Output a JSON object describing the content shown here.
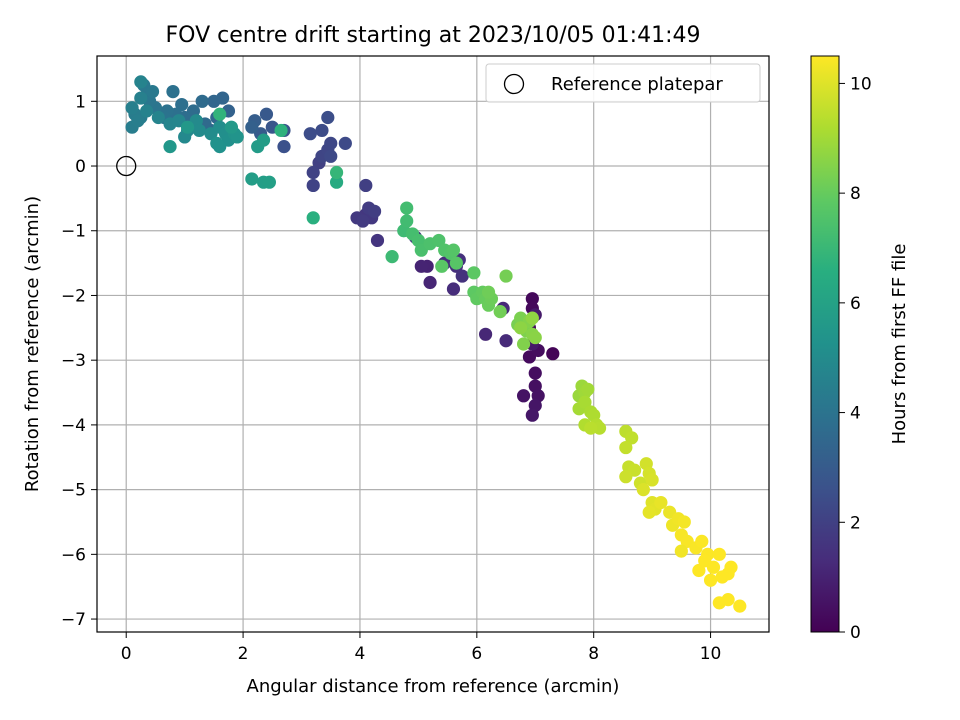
{
  "chart_data": {
    "type": "scatter",
    "title": "FOV centre drift starting at 2023/10/05 01:41:49",
    "xlabel": "Angular distance from reference (arcmin)",
    "ylabel": "Rotation from reference (arcmin)",
    "xlim": [
      -0.5,
      11.0
    ],
    "ylim": [
      -7.2,
      1.7
    ],
    "x_ticks": [
      0,
      2,
      4,
      6,
      8,
      10
    ],
    "y_ticks": [
      -7,
      -6,
      -5,
      -4,
      -3,
      -2,
      -1,
      0,
      1
    ],
    "grid": true,
    "legend": {
      "placement": "upper right",
      "entries": [
        "Reference platepar"
      ]
    },
    "reference_point": {
      "label": "Reference platepar",
      "x": 0,
      "y": 0
    },
    "colorbar": {
      "label": "Hours from first FF file",
      "colormap": "viridis",
      "range": [
        0,
        10.5
      ],
      "ticks": [
        0,
        2,
        4,
        6,
        8,
        10
      ]
    },
    "points": [
      {
        "x": 7.3,
        "y": -2.9,
        "c": 0.1
      },
      {
        "x": 6.95,
        "y": -2.05,
        "c": 0.2
      },
      {
        "x": 6.95,
        "y": -2.2,
        "c": 0.25
      },
      {
        "x": 6.9,
        "y": -2.95,
        "c": 0.3
      },
      {
        "x": 7.05,
        "y": -2.85,
        "c": 0.35
      },
      {
        "x": 7.0,
        "y": -3.2,
        "c": 0.4
      },
      {
        "x": 7.0,
        "y": -3.4,
        "c": 0.45
      },
      {
        "x": 7.05,
        "y": -3.55,
        "c": 0.5
      },
      {
        "x": 6.8,
        "y": -3.55,
        "c": 0.55
      },
      {
        "x": 7.0,
        "y": -3.7,
        "c": 0.6
      },
      {
        "x": 6.95,
        "y": -3.85,
        "c": 0.65
      },
      {
        "x": 6.95,
        "y": -2.75,
        "c": 0.7
      },
      {
        "x": 7.0,
        "y": -2.3,
        "c": 0.75
      },
      {
        "x": 6.9,
        "y": -2.5,
        "c": 0.3
      },
      {
        "x": 5.15,
        "y": -1.55,
        "c": 1.0
      },
      {
        "x": 5.05,
        "y": -1.55,
        "c": 1.05
      },
      {
        "x": 5.2,
        "y": -1.8,
        "c": 1.1
      },
      {
        "x": 6.15,
        "y": -2.6,
        "c": 1.15
      },
      {
        "x": 6.45,
        "y": -2.2,
        "c": 1.2
      },
      {
        "x": 6.5,
        "y": -2.7,
        "c": 1.25
      },
      {
        "x": 5.6,
        "y": -1.9,
        "c": 1.3
      },
      {
        "x": 5.45,
        "y": -1.5,
        "c": 1.35
      },
      {
        "x": 5.65,
        "y": -1.55,
        "c": 1.4
      },
      {
        "x": 5.7,
        "y": -1.45,
        "c": 1.45
      },
      {
        "x": 5.75,
        "y": -1.7,
        "c": 1.5
      },
      {
        "x": 4.95,
        "y": -1.1,
        "c": 1.55
      },
      {
        "x": 4.3,
        "y": -1.15,
        "c": 1.6
      },
      {
        "x": 4.1,
        "y": -0.75,
        "c": 1.65
      },
      {
        "x": 4.2,
        "y": -0.8,
        "c": 1.7
      },
      {
        "x": 3.95,
        "y": -0.8,
        "c": 1.75
      },
      {
        "x": 4.05,
        "y": -0.85,
        "c": 1.8
      },
      {
        "x": 4.15,
        "y": -0.65,
        "c": 1.85
      },
      {
        "x": 4.25,
        "y": -0.7,
        "c": 1.9
      },
      {
        "x": 4.1,
        "y": -0.3,
        "c": 1.95
      },
      {
        "x": 3.3,
        "y": 0.05,
        "c": 2.0
      },
      {
        "x": 3.2,
        "y": -0.1,
        "c": 2.05
      },
      {
        "x": 3.2,
        "y": -0.3,
        "c": 2.1
      },
      {
        "x": 3.35,
        "y": 0.15,
        "c": 2.15
      },
      {
        "x": 3.45,
        "y": 0.25,
        "c": 2.2
      },
      {
        "x": 3.5,
        "y": 0.35,
        "c": 2.25
      },
      {
        "x": 3.5,
        "y": 0.15,
        "c": 2.3
      },
      {
        "x": 3.75,
        "y": 0.35,
        "c": 2.35
      },
      {
        "x": 3.35,
        "y": 0.55,
        "c": 2.4
      },
      {
        "x": 3.15,
        "y": 0.5,
        "c": 2.45
      },
      {
        "x": 3.45,
        "y": 0.75,
        "c": 2.5
      },
      {
        "x": 2.7,
        "y": 0.3,
        "c": 2.6
      },
      {
        "x": 2.7,
        "y": 0.55,
        "c": 2.7
      },
      {
        "x": 2.5,
        "y": 0.6,
        "c": 2.8
      },
      {
        "x": 2.4,
        "y": 0.8,
        "c": 2.9
      },
      {
        "x": 2.3,
        "y": 0.5,
        "c": 3.0
      },
      {
        "x": 2.2,
        "y": 0.7,
        "c": 3.1
      },
      {
        "x": 2.15,
        "y": 0.6,
        "c": 3.2
      },
      {
        "x": 1.75,
        "y": 0.85,
        "c": 3.3
      },
      {
        "x": 1.65,
        "y": 1.05,
        "c": 3.4
      },
      {
        "x": 1.5,
        "y": 1.0,
        "c": 3.45
      },
      {
        "x": 1.55,
        "y": 0.75,
        "c": 3.5
      },
      {
        "x": 1.45,
        "y": 0.55,
        "c": 3.55
      },
      {
        "x": 1.35,
        "y": 0.65,
        "c": 3.6
      },
      {
        "x": 1.3,
        "y": 1.0,
        "c": 3.65
      },
      {
        "x": 1.15,
        "y": 0.85,
        "c": 3.7
      },
      {
        "x": 1.0,
        "y": 0.75,
        "c": 3.75
      },
      {
        "x": 0.95,
        "y": 0.95,
        "c": 3.8
      },
      {
        "x": 0.85,
        "y": 0.8,
        "c": 3.85
      },
      {
        "x": 0.8,
        "y": 1.15,
        "c": 3.9
      },
      {
        "x": 0.7,
        "y": 0.85,
        "c": 3.95
      },
      {
        "x": 0.65,
        "y": 0.75,
        "c": 4.0
      },
      {
        "x": 0.5,
        "y": 0.9,
        "c": 4.05
      },
      {
        "x": 0.4,
        "y": 1.0,
        "c": 4.1
      },
      {
        "x": 0.35,
        "y": 1.1,
        "c": 4.15
      },
      {
        "x": 0.3,
        "y": 1.25,
        "c": 4.2
      },
      {
        "x": 0.45,
        "y": 1.15,
        "c": 4.25
      },
      {
        "x": 0.25,
        "y": 0.75,
        "c": 4.3
      },
      {
        "x": 0.15,
        "y": 0.8,
        "c": 4.35
      },
      {
        "x": 0.1,
        "y": 0.6,
        "c": 4.4
      },
      {
        "x": 0.2,
        "y": 0.7,
        "c": 4.45
      },
      {
        "x": 0.1,
        "y": 0.9,
        "c": 4.5
      },
      {
        "x": 0.25,
        "y": 1.05,
        "c": 4.55
      },
      {
        "x": 0.35,
        "y": 0.85,
        "c": 4.6
      },
      {
        "x": 0.25,
        "y": 1.3,
        "c": 4.65
      },
      {
        "x": 0.55,
        "y": 0.75,
        "c": 4.7
      },
      {
        "x": 0.75,
        "y": 0.65,
        "c": 4.75
      },
      {
        "x": 0.9,
        "y": 0.7,
        "c": 4.8
      },
      {
        "x": 1.05,
        "y": 0.55,
        "c": 4.85
      },
      {
        "x": 1.0,
        "y": 0.45,
        "c": 4.9
      },
      {
        "x": 1.2,
        "y": 0.7,
        "c": 4.95
      },
      {
        "x": 1.25,
        "y": 0.55,
        "c": 5.0
      },
      {
        "x": 1.45,
        "y": 0.5,
        "c": 5.05
      },
      {
        "x": 1.6,
        "y": 0.6,
        "c": 5.1
      },
      {
        "x": 1.7,
        "y": 0.5,
        "c": 5.15
      },
      {
        "x": 1.75,
        "y": 0.4,
        "c": 5.2
      },
      {
        "x": 1.6,
        "y": 0.3,
        "c": 5.25
      },
      {
        "x": 1.55,
        "y": 0.35,
        "c": 5.3
      },
      {
        "x": 1.85,
        "y": 0.5,
        "c": 5.35
      },
      {
        "x": 1.9,
        "y": 0.45,
        "c": 5.4
      },
      {
        "x": 0.75,
        "y": 0.3,
        "c": 5.5
      },
      {
        "x": 1.05,
        "y": 0.6,
        "c": 5.55
      },
      {
        "x": 1.8,
        "y": 0.6,
        "c": 5.6
      },
      {
        "x": 2.25,
        "y": 0.3,
        "c": 5.7
      },
      {
        "x": 2.35,
        "y": 0.4,
        "c": 5.75
      },
      {
        "x": 2.15,
        "y": -0.2,
        "c": 5.8
      },
      {
        "x": 2.35,
        "y": -0.25,
        "c": 5.85
      },
      {
        "x": 2.45,
        "y": -0.25,
        "c": 5.9
      },
      {
        "x": 3.6,
        "y": -0.25,
        "c": 6.4
      },
      {
        "x": 3.2,
        "y": -0.8,
        "c": 6.6
      },
      {
        "x": 2.65,
        "y": 0.55,
        "c": 6.7
      },
      {
        "x": 1.6,
        "y": 0.8,
        "c": 6.8
      },
      {
        "x": 3.6,
        "y": -0.1,
        "c": 6.9
      },
      {
        "x": 4.55,
        "y": -1.4,
        "c": 7.1
      },
      {
        "x": 4.75,
        "y": -1.0,
        "c": 7.15
      },
      {
        "x": 4.8,
        "y": -0.85,
        "c": 7.2
      },
      {
        "x": 4.8,
        "y": -0.65,
        "c": 7.25
      },
      {
        "x": 4.9,
        "y": -1.05,
        "c": 7.3
      },
      {
        "x": 5.0,
        "y": -1.15,
        "c": 7.35
      },
      {
        "x": 5.05,
        "y": -1.3,
        "c": 7.4
      },
      {
        "x": 5.2,
        "y": -1.2,
        "c": 7.45
      },
      {
        "x": 5.35,
        "y": -1.15,
        "c": 7.5
      },
      {
        "x": 5.45,
        "y": -1.3,
        "c": 7.55
      },
      {
        "x": 5.55,
        "y": -1.35,
        "c": 7.6
      },
      {
        "x": 5.6,
        "y": -1.3,
        "c": 7.65
      },
      {
        "x": 5.65,
        "y": -1.5,
        "c": 7.7
      },
      {
        "x": 5.4,
        "y": -1.55,
        "c": 7.75
      },
      {
        "x": 5.95,
        "y": -1.65,
        "c": 7.8
      },
      {
        "x": 5.95,
        "y": -1.95,
        "c": 7.85
      },
      {
        "x": 6.0,
        "y": -2.05,
        "c": 7.9
      },
      {
        "x": 6.1,
        "y": -1.95,
        "c": 7.95
      },
      {
        "x": 6.15,
        "y": -2.05,
        "c": 8.0
      },
      {
        "x": 6.2,
        "y": -2.15,
        "c": 8.05
      },
      {
        "x": 6.25,
        "y": -2.05,
        "c": 8.1
      },
      {
        "x": 6.2,
        "y": -1.95,
        "c": 8.15
      },
      {
        "x": 6.4,
        "y": -2.25,
        "c": 8.2
      },
      {
        "x": 6.5,
        "y": -1.7,
        "c": 8.25
      },
      {
        "x": 6.7,
        "y": -2.45,
        "c": 8.3
      },
      {
        "x": 6.75,
        "y": -2.35,
        "c": 8.35
      },
      {
        "x": 6.85,
        "y": -2.55,
        "c": 8.4
      },
      {
        "x": 6.8,
        "y": -2.75,
        "c": 8.45
      },
      {
        "x": 6.9,
        "y": -2.4,
        "c": 8.5
      },
      {
        "x": 6.95,
        "y": -2.6,
        "c": 8.55
      },
      {
        "x": 7.0,
        "y": -2.65,
        "c": 8.6
      },
      {
        "x": 6.75,
        "y": -2.5,
        "c": 8.65
      },
      {
        "x": 6.95,
        "y": -2.35,
        "c": 8.7
      },
      {
        "x": 7.75,
        "y": -3.55,
        "c": 8.85
      },
      {
        "x": 7.8,
        "y": -3.4,
        "c": 8.9
      },
      {
        "x": 7.85,
        "y": -3.5,
        "c": 8.95
      },
      {
        "x": 7.9,
        "y": -3.45,
        "c": 9.0
      },
      {
        "x": 7.75,
        "y": -3.75,
        "c": 9.05
      },
      {
        "x": 7.85,
        "y": -3.65,
        "c": 9.1
      },
      {
        "x": 7.95,
        "y": -3.8,
        "c": 9.15
      },
      {
        "x": 8.0,
        "y": -3.85,
        "c": 9.2
      },
      {
        "x": 7.85,
        "y": -4.0,
        "c": 9.25
      },
      {
        "x": 8.05,
        "y": -4.0,
        "c": 9.3
      },
      {
        "x": 8.1,
        "y": -4.05,
        "c": 9.35
      },
      {
        "x": 7.95,
        "y": -4.05,
        "c": 9.4
      },
      {
        "x": 8.55,
        "y": -4.1,
        "c": 9.45
      },
      {
        "x": 8.65,
        "y": -4.2,
        "c": 9.5
      },
      {
        "x": 8.55,
        "y": -4.35,
        "c": 9.55
      },
      {
        "x": 8.6,
        "y": -4.65,
        "c": 9.6
      },
      {
        "x": 8.7,
        "y": -4.7,
        "c": 9.65
      },
      {
        "x": 8.55,
        "y": -4.8,
        "c": 9.7
      },
      {
        "x": 8.8,
        "y": -4.9,
        "c": 9.75
      },
      {
        "x": 8.9,
        "y": -4.6,
        "c": 9.8
      },
      {
        "x": 8.95,
        "y": -4.75,
        "c": 9.85
      },
      {
        "x": 9.0,
        "y": -4.85,
        "c": 9.9
      },
      {
        "x": 8.85,
        "y": -5.0,
        "c": 9.95
      },
      {
        "x": 9.0,
        "y": -5.2,
        "c": 10.0
      },
      {
        "x": 9.05,
        "y": -5.3,
        "c": 10.05
      },
      {
        "x": 8.95,
        "y": -5.35,
        "c": 10.1
      },
      {
        "x": 9.15,
        "y": -5.2,
        "c": 10.15
      },
      {
        "x": 9.3,
        "y": -5.35,
        "c": 10.2
      },
      {
        "x": 9.35,
        "y": -5.55,
        "c": 10.25
      },
      {
        "x": 9.45,
        "y": -5.45,
        "c": 10.3
      },
      {
        "x": 9.55,
        "y": -5.5,
        "c": 10.35
      },
      {
        "x": 9.5,
        "y": -5.7,
        "c": 10.4
      },
      {
        "x": 9.6,
        "y": -5.8,
        "c": 10.42
      },
      {
        "x": 9.75,
        "y": -5.9,
        "c": 10.44
      },
      {
        "x": 9.85,
        "y": -5.8,
        "c": 10.46
      },
      {
        "x": 9.95,
        "y": -6.0,
        "c": 10.48
      },
      {
        "x": 9.8,
        "y": -6.25,
        "c": 10.5
      },
      {
        "x": 9.9,
        "y": -6.1,
        "c": 10.5
      },
      {
        "x": 10.05,
        "y": -6.2,
        "c": 10.5
      },
      {
        "x": 10.15,
        "y": -6.0,
        "c": 10.5
      },
      {
        "x": 10.0,
        "y": -6.4,
        "c": 10.5
      },
      {
        "x": 10.2,
        "y": -6.35,
        "c": 10.5
      },
      {
        "x": 10.3,
        "y": -6.3,
        "c": 10.5
      },
      {
        "x": 10.35,
        "y": -6.2,
        "c": 10.5
      },
      {
        "x": 10.15,
        "y": -6.75,
        "c": 10.5
      },
      {
        "x": 10.3,
        "y": -6.7,
        "c": 10.5
      },
      {
        "x": 10.5,
        "y": -6.8,
        "c": 10.5
      },
      {
        "x": 9.5,
        "y": -5.95,
        "c": 10.3
      }
    ]
  }
}
